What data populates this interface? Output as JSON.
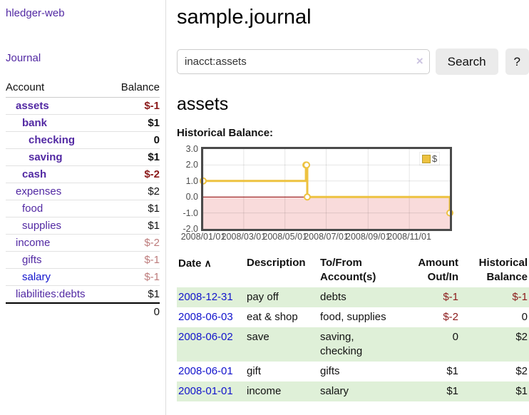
{
  "app": {
    "brand": "hledger-web",
    "nav_journal": "Journal"
  },
  "colors": {
    "purple": "#5229a3",
    "blue": "#1113cc",
    "negstrong": "#8b1a1a",
    "negsoft": "#bd7b7b",
    "rowgreen": "#dff0d8",
    "gold": "#edc240",
    "goldedge": "#b89b2e",
    "pink": "#f9dbdb",
    "zeroline": "#8b0000"
  },
  "sidebar": {
    "table_headers": {
      "account": "Account",
      "balance": "Balance"
    },
    "accounts": [
      {
        "label": "assets",
        "balance": "$-1",
        "depth": 1,
        "bold": true,
        "tone": "neg-strong",
        "link": "purple"
      },
      {
        "label": "bank",
        "balance": "$1",
        "depth": 2,
        "bold": true,
        "tone": "",
        "link": "purple"
      },
      {
        "label": "checking",
        "balance": "0",
        "depth": 3,
        "bold": true,
        "tone": "",
        "link": "purple"
      },
      {
        "label": "saving",
        "balance": "$1",
        "depth": 3,
        "bold": true,
        "tone": "",
        "link": "purple"
      },
      {
        "label": "cash",
        "balance": "$-2",
        "depth": 2,
        "bold": true,
        "tone": "neg-strong",
        "link": "purple"
      },
      {
        "label": "expenses",
        "balance": "$2",
        "depth": 1,
        "bold": false,
        "tone": "",
        "link": "purple"
      },
      {
        "label": "food",
        "balance": "$1",
        "depth": 2,
        "bold": false,
        "tone": "",
        "link": "purple"
      },
      {
        "label": "supplies",
        "balance": "$1",
        "depth": 2,
        "bold": false,
        "tone": "",
        "link": "purple"
      },
      {
        "label": "income",
        "balance": "$-2",
        "depth": 1,
        "bold": false,
        "tone": "neg-soft",
        "link": "purple"
      },
      {
        "label": "gifts",
        "balance": "$-1",
        "depth": 2,
        "bold": false,
        "tone": "neg-soft",
        "link": "purple"
      },
      {
        "label": "salary",
        "balance": "$-1",
        "depth": 2,
        "bold": false,
        "tone": "neg-soft",
        "link": "blue"
      },
      {
        "label": "liabilities:debts",
        "balance": "$1",
        "depth": 1,
        "bold": false,
        "tone": "",
        "link": "purple"
      }
    ],
    "total": "0"
  },
  "header": {
    "title": "sample.journal"
  },
  "search": {
    "value": "inacct:assets",
    "clear_icon": "×",
    "button": "Search",
    "help_button": "?"
  },
  "account_page": {
    "title": "assets",
    "chart_label": "Historical Balance:"
  },
  "chart_data": {
    "type": "line",
    "step": true,
    "title": "Historical Balance:",
    "legend": "$",
    "legend_position": "top-right",
    "grid": true,
    "x_range": [
      "2008-01-01",
      "2008-12-31"
    ],
    "ylim": [
      -2,
      3
    ],
    "y_ticks": [
      {
        "v": 3,
        "label": "3.0"
      },
      {
        "v": 2,
        "label": "2.0"
      },
      {
        "v": 1,
        "label": "1.0"
      },
      {
        "v": 0,
        "label": "0.0"
      },
      {
        "v": -1,
        "label": "-1.0"
      },
      {
        "v": -2,
        "label": "-2.0"
      }
    ],
    "x_ticks": [
      {
        "date": "2008-01-01",
        "label": "2008/01/01"
      },
      {
        "date": "2008-03-01",
        "label": "2008/03/01"
      },
      {
        "date": "2008-05-01",
        "label": "2008/05/01"
      },
      {
        "date": "2008-07-01",
        "label": "2008/07/01"
      },
      {
        "date": "2008-09-01",
        "label": "2008/09/01"
      },
      {
        "date": "2008-11-01",
        "label": "2008/11/01"
      }
    ],
    "series": [
      {
        "name": "$",
        "color": "#edc240",
        "points": [
          {
            "date": "2008-01-01",
            "value": 1
          },
          {
            "date": "2008-06-01",
            "value": 2
          },
          {
            "date": "2008-06-02",
            "value": 2
          },
          {
            "date": "2008-06-03",
            "value": 0
          },
          {
            "date": "2008-12-31",
            "value": -1
          }
        ]
      }
    ],
    "negative_region_fill": "#f9dbdb",
    "zero_line_color": "#8b0000"
  },
  "register": {
    "columns": [
      "Date",
      "Description",
      "To/From Account(s)",
      "Amount Out/In",
      "Historical Balance"
    ],
    "sort_icon": "∧",
    "rows": [
      {
        "date": "2008-12-31",
        "description": "pay off",
        "accounts": "debts",
        "amount": "$-1",
        "amount_neg": true,
        "balance": "$-1",
        "balance_neg": true
      },
      {
        "date": "2008-06-03",
        "description": "eat & shop",
        "accounts": "food, supplies",
        "amount": "$-2",
        "amount_neg": true,
        "balance": "0",
        "balance_neg": false
      },
      {
        "date": "2008-06-02",
        "description": "save",
        "accounts": "saving, checking",
        "amount": "0",
        "amount_neg": false,
        "balance": "$2",
        "balance_neg": false
      },
      {
        "date": "2008-06-01",
        "description": "gift",
        "accounts": "gifts",
        "amount": "$1",
        "amount_neg": false,
        "balance": "$2",
        "balance_neg": false
      },
      {
        "date": "2008-01-01",
        "description": "income",
        "accounts": "salary",
        "amount": "$1",
        "amount_neg": false,
        "balance": "$1",
        "balance_neg": false
      }
    ]
  }
}
